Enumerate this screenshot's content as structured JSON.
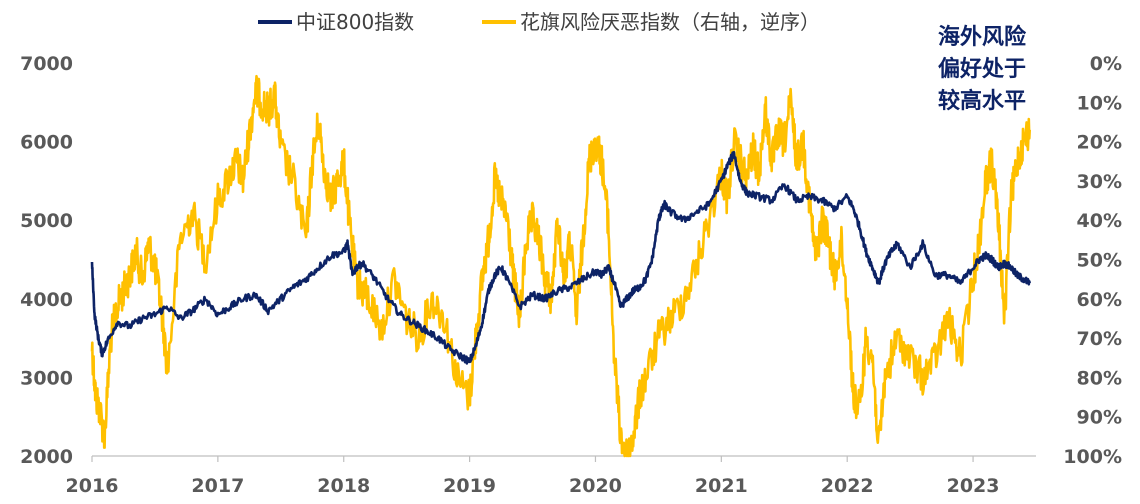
{
  "chart_data": {
    "type": "line",
    "x_ticks": [
      "2016",
      "2017",
      "2018",
      "2019",
      "2020",
      "2021",
      "2022",
      "2023"
    ],
    "x_range": [
      2016.0,
      2023.5
    ],
    "y_left": {
      "ticks": [
        "2000",
        "3000",
        "4000",
        "5000",
        "6000",
        "7000"
      ],
      "range": [
        2000,
        7000
      ]
    },
    "y_right": {
      "ticks": [
        "0%",
        "10%",
        "20%",
        "30%",
        "40%",
        "50%",
        "60%",
        "70%",
        "80%",
        "90%",
        "100%"
      ],
      "range": [
        0,
        100
      ],
      "inverted": true
    },
    "grid": false,
    "legend_position": "top",
    "annotation": [
      "海外风险",
      "偏好处于",
      "较高水平"
    ],
    "series": [
      {
        "name": "中证800指数",
        "axis": "left",
        "color": "#0d2366",
        "x": [
          2016.0,
          2016.02,
          2016.05,
          2016.08,
          2016.12,
          2016.2,
          2016.3,
          2016.4,
          2016.5,
          2016.6,
          2016.7,
          2016.8,
          2016.9,
          2017.0,
          2017.1,
          2017.2,
          2017.3,
          2017.4,
          2017.5,
          2017.6,
          2017.7,
          2017.8,
          2017.9,
          2018.0,
          2018.03,
          2018.07,
          2018.1,
          2018.15,
          2018.25,
          2018.35,
          2018.45,
          2018.55,
          2018.65,
          2018.75,
          2018.85,
          2018.95,
          2019.0,
          2019.05,
          2019.1,
          2019.15,
          2019.2,
          2019.25,
          2019.3,
          2019.4,
          2019.5,
          2019.6,
          2019.7,
          2019.8,
          2019.9,
          2020.0,
          2020.05,
          2020.1,
          2020.15,
          2020.2,
          2020.25,
          2020.3,
          2020.35,
          2020.4,
          2020.45,
          2020.5,
          2020.52,
          2020.55,
          2020.6,
          2020.7,
          2020.8,
          2020.9,
          2021.0,
          2021.05,
          2021.1,
          2021.15,
          2021.2,
          2021.3,
          2021.4,
          2021.5,
          2021.6,
          2021.7,
          2021.8,
          2021.9,
          2022.0,
          2022.05,
          2022.1,
          2022.15,
          2022.2,
          2022.25,
          2022.3,
          2022.35,
          2022.4,
          2022.5,
          2022.6,
          2022.7,
          2022.8,
          2022.9,
          2023.0,
          2023.05,
          2023.1,
          2023.15,
          2023.2,
          2023.25,
          2023.3,
          2023.35,
          2023.4,
          2023.45
        ],
        "y": [
          4450,
          3800,
          3500,
          3300,
          3450,
          3700,
          3650,
          3750,
          3800,
          3900,
          3750,
          3850,
          4000,
          3800,
          3900,
          4000,
          4050,
          3850,
          4000,
          4150,
          4250,
          4400,
          4550,
          4600,
          4700,
          4300,
          4400,
          4450,
          4250,
          4000,
          3800,
          3700,
          3600,
          3500,
          3350,
          3250,
          3200,
          3400,
          3700,
          4100,
          4300,
          4400,
          4250,
          3900,
          4050,
          4000,
          4100,
          4150,
          4250,
          4350,
          4300,
          4400,
          4200,
          3900,
          4000,
          4100,
          4150,
          4250,
          4500,
          5000,
          5100,
          5200,
          5100,
          5000,
          5100,
          5200,
          5500,
          5700,
          5850,
          5500,
          5350,
          5300,
          5250,
          5450,
          5250,
          5300,
          5250,
          5150,
          5300,
          5150,
          4900,
          4600,
          4400,
          4200,
          4450,
          4600,
          4700,
          4400,
          4700,
          4300,
          4300,
          4200,
          4400,
          4500,
          4550,
          4500,
          4400,
          4450,
          4400,
          4300,
          4250,
          4200
        ]
      },
      {
        "name": "花旗风险厌恶指数（右轴，逆序）",
        "axis": "right",
        "color": "#ffc000",
        "x": [
          2016.0,
          2016.03,
          2016.06,
          2016.1,
          2016.15,
          2016.2,
          2016.25,
          2016.3,
          2016.35,
          2016.4,
          2016.45,
          2016.5,
          2016.55,
          2016.6,
          2016.7,
          2016.8,
          2016.9,
          2017.0,
          2017.1,
          2017.15,
          2017.2,
          2017.25,
          2017.3,
          2017.35,
          2017.4,
          2017.45,
          2017.5,
          2017.6,
          2017.7,
          2017.75,
          2017.8,
          2017.85,
          2017.9,
          2017.95,
          2018.0,
          2018.05,
          2018.1,
          2018.15,
          2018.2,
          2018.3,
          2018.4,
          2018.5,
          2018.6,
          2018.7,
          2018.8,
          2018.9,
          2019.0,
          2019.05,
          2019.1,
          2019.15,
          2019.2,
          2019.25,
          2019.3,
          2019.35,
          2019.4,
          2019.45,
          2019.5,
          2019.55,
          2019.6,
          2019.65,
          2019.7,
          2019.75,
          2019.8,
          2019.85,
          2019.9,
          2019.95,
          2020.0,
          2020.05,
          2020.1,
          2020.15,
          2020.2,
          2020.25,
          2020.3,
          2020.35,
          2020.4,
          2020.5,
          2020.6,
          2020.7,
          2020.8,
          2020.9,
          2021.0,
          2021.05,
          2021.1,
          2021.15,
          2021.2,
          2021.25,
          2021.3,
          2021.35,
          2021.4,
          2021.45,
          2021.5,
          2021.55,
          2021.6,
          2021.65,
          2021.7,
          2021.75,
          2021.8,
          2021.85,
          2021.9,
          2021.95,
          2022.0,
          2022.05,
          2022.1,
          2022.15,
          2022.2,
          2022.25,
          2022.3,
          2022.4,
          2022.5,
          2022.6,
          2022.7,
          2022.8,
          2022.9,
          2023.0,
          2023.05,
          2023.1,
          2023.15,
          2023.2,
          2023.25,
          2023.3,
          2023.35,
          2023.4,
          2023.45
        ],
        "y": [
          72,
          85,
          88,
          95,
          70,
          62,
          58,
          54,
          48,
          55,
          46,
          52,
          62,
          78,
          45,
          38,
          50,
          35,
          28,
          25,
          30,
          18,
          7,
          10,
          12,
          8,
          22,
          30,
          45,
          25,
          15,
          28,
          35,
          30,
          25,
          42,
          55,
          58,
          60,
          68,
          55,
          65,
          70,
          60,
          65,
          80,
          85,
          70,
          55,
          45,
          30,
          35,
          40,
          55,
          65,
          45,
          40,
          45,
          55,
          60,
          40,
          55,
          45,
          65,
          45,
          25,
          20,
          25,
          40,
          75,
          95,
          100,
          95,
          85,
          80,
          70,
          65,
          60,
          52,
          40,
          28,
          35,
          20,
          25,
          30,
          22,
          28,
          12,
          25,
          18,
          20,
          10,
          25,
          20,
          35,
          50,
          40,
          45,
          55,
          45,
          60,
          85,
          88,
          70,
          75,
          98,
          80,
          70,
          75,
          80,
          75,
          65,
          75,
          55,
          45,
          30,
          25,
          40,
          65,
          35,
          25,
          20,
          17
        ]
      }
    ]
  }
}
